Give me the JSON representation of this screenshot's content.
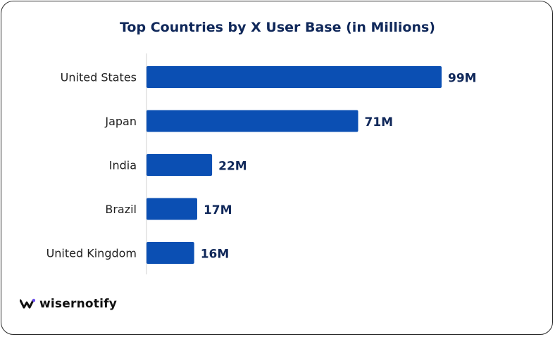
{
  "chart_data": {
    "type": "bar",
    "orientation": "horizontal",
    "title": "Top Countries by X User Base (in Millions)",
    "categories": [
      "United States",
      "Japan",
      "India",
      "Brazil",
      "United Kingdom"
    ],
    "values": [
      99,
      71,
      22,
      17,
      16
    ],
    "data_labels": [
      "99M",
      "71M",
      "22M",
      "17M",
      "16M"
    ],
    "unit": "M",
    "grid": false,
    "bar_color": "#0b4fb3"
  },
  "brand": {
    "name": "wisernotify",
    "icon": "wisernotify-logo-icon",
    "accent_color": "#6b4df0"
  }
}
